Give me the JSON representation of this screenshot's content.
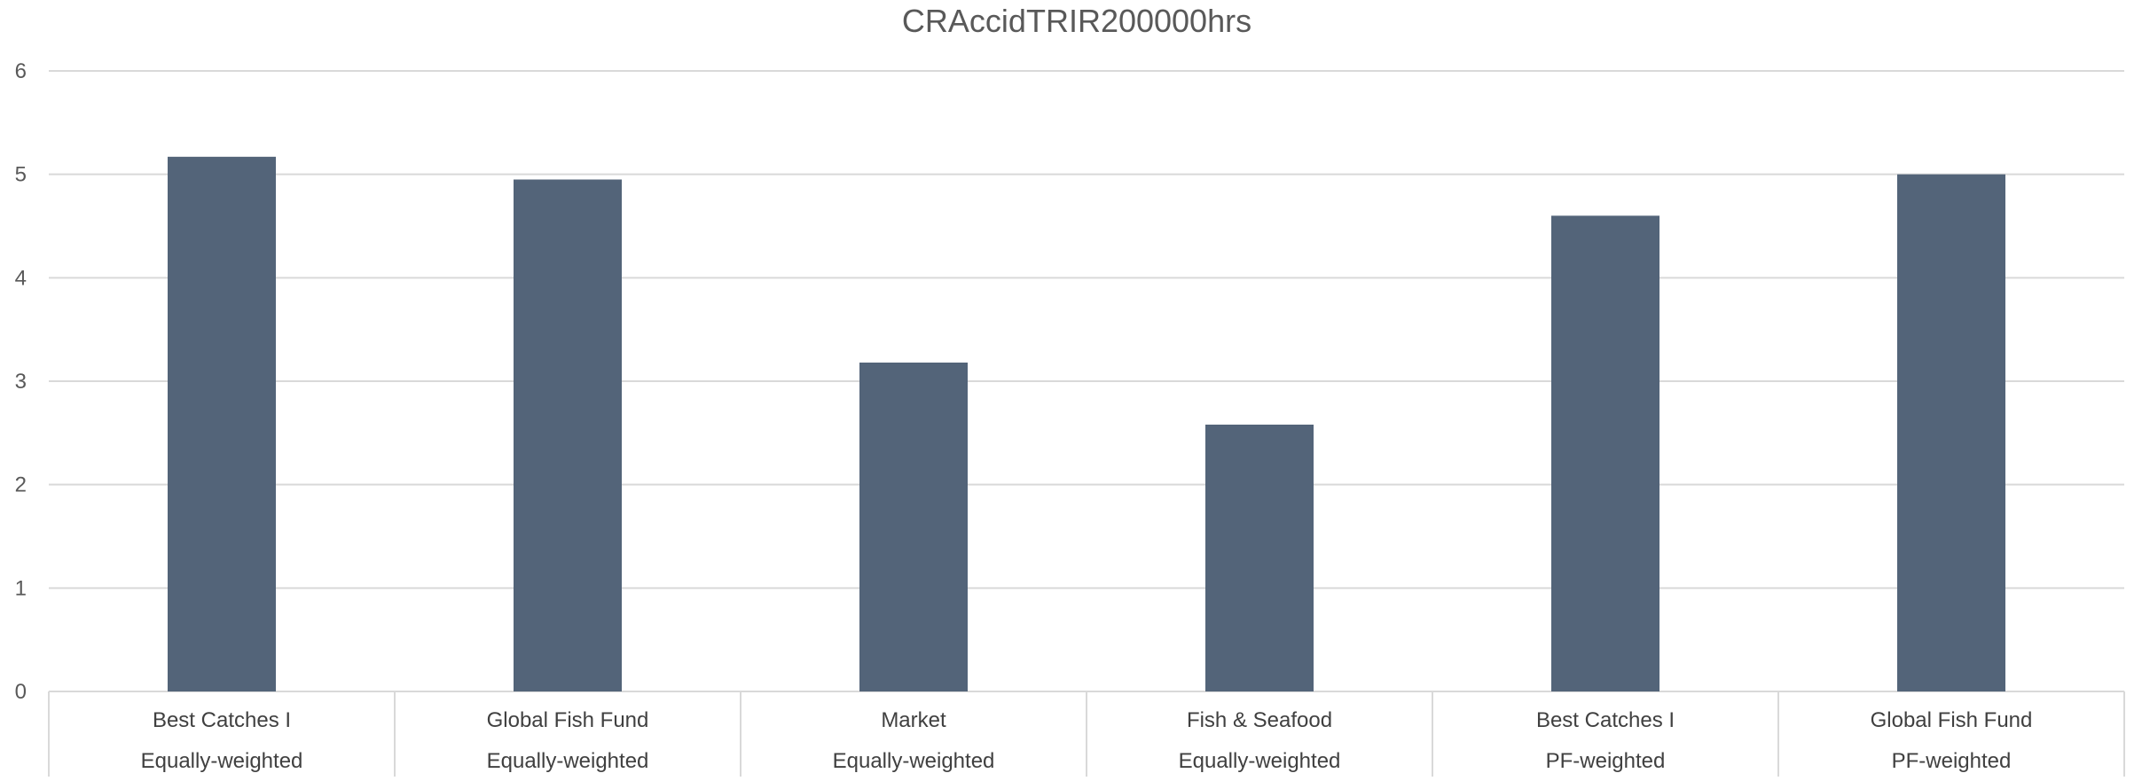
{
  "colors": {
    "bar": "#536479",
    "grid": "#d9d9d9",
    "text": "#595959"
  },
  "chart_data": {
    "type": "bar",
    "title": "CRAccidTRIR200000hrs",
    "xlabel": "",
    "ylabel": "",
    "ylim": [
      0,
      6
    ],
    "yticks": [
      "0",
      "1",
      "2",
      "3",
      "4",
      "5",
      "6"
    ],
    "grid": true,
    "legend": "none",
    "categories": [
      {
        "line1": "Best Catches I",
        "line2": "Equally-weighted"
      },
      {
        "line1": "Global Fish Fund",
        "line2": "Equally-weighted"
      },
      {
        "line1": "Market",
        "line2": "Equally-weighted"
      },
      {
        "line1": "Fish & Seafood",
        "line2": "Equally-weighted"
      },
      {
        "line1": "Best Catches I",
        "line2": "PF-weighted"
      },
      {
        "line1": "Global Fish Fund",
        "line2": "PF-weighted"
      }
    ],
    "values": [
      5.17,
      4.95,
      3.18,
      2.58,
      4.6,
      5.0
    ]
  }
}
